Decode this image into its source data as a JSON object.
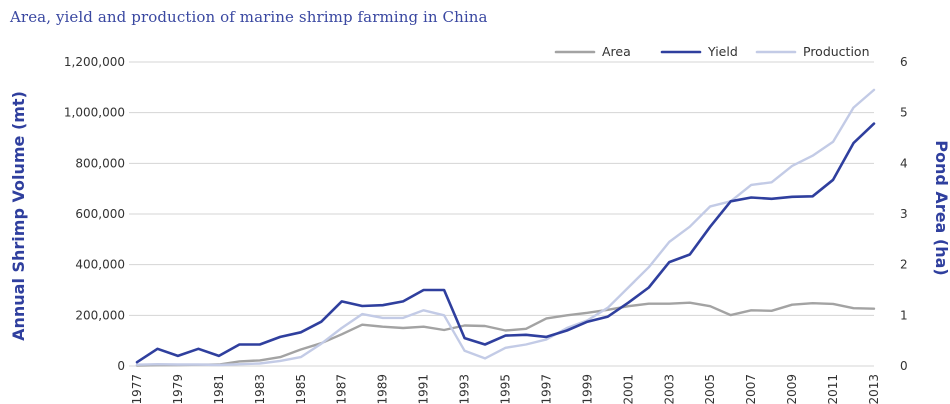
{
  "chart_data": {
    "type": "line",
    "title": "Area, yield and production of marine shrimp farming in China",
    "ylabel": "Annual Shrimp Volume (mt)",
    "y2label": "Pond Area (ha)",
    "ylim": [
      0,
      1200000
    ],
    "y2lim": [
      0,
      6
    ],
    "yticks": [
      "0",
      "200,000",
      "400,000",
      "600,000",
      "800,000",
      "1,000,000",
      "1,200,000"
    ],
    "y2ticks": [
      "0",
      "1",
      "2",
      "3",
      "4",
      "5",
      "6"
    ],
    "grid": true,
    "legend_position": "top-right",
    "x": [
      1977,
      1978,
      1979,
      1980,
      1981,
      1982,
      1983,
      1984,
      1985,
      1986,
      1987,
      1988,
      1989,
      1990,
      1991,
      1992,
      1993,
      1994,
      1995,
      1996,
      1997,
      1998,
      1999,
      2000,
      2001,
      2002,
      2003,
      2004,
      2005,
      2006,
      2007,
      2008,
      2009,
      2010,
      2011,
      2012,
      2013
    ],
    "xticks": [
      "1977",
      "1979",
      "1981",
      "1983",
      "1985",
      "1987",
      "1989",
      "1991",
      "1993",
      "1995",
      "1997",
      "1999",
      "2001",
      "2003",
      "2005",
      "2007",
      "2009",
      "2011",
      "2013"
    ],
    "series": [
      {
        "name": "Area",
        "color": "#a3a3a3",
        "values": [
          2000,
          3000,
          4000,
          5000,
          6000,
          18000,
          22000,
          35000,
          65000,
          90000,
          125000,
          163000,
          155000,
          150000,
          155000,
          142000,
          160000,
          158000,
          140000,
          147000,
          188000,
          200000,
          210000,
          222000,
          236000,
          246000,
          246000,
          250000,
          236000,
          201000,
          220000,
          218000,
          242000,
          248000,
          245000,
          228000,
          226000
        ]
      },
      {
        "name": "Yield",
        "color": "#2f3f9e",
        "values": [
          15000,
          68000,
          40000,
          68000,
          40000,
          85000,
          85000,
          115000,
          133000,
          175000,
          255000,
          237000,
          240000,
          255000,
          300000,
          300000,
          110000,
          85000,
          120000,
          123000,
          115000,
          140000,
          175000,
          195000,
          250000,
          310000,
          410000,
          440000,
          550000,
          650000,
          665000,
          660000,
          668000,
          670000,
          735000,
          880000,
          957000
        ]
      },
      {
        "name": "Production",
        "color": "#c3cbe6",
        "values": [
          5000,
          7000,
          6000,
          6000,
          4000,
          7000,
          10000,
          20000,
          35000,
          88000,
          150000,
          205000,
          190000,
          190000,
          220000,
          200000,
          60000,
          30000,
          72000,
          85000,
          105000,
          150000,
          180000,
          230000,
          310000,
          390000,
          490000,
          550000,
          630000,
          650000,
          715000,
          725000,
          790000,
          830000,
          885000,
          1020000,
          1090000
        ]
      }
    ]
  }
}
